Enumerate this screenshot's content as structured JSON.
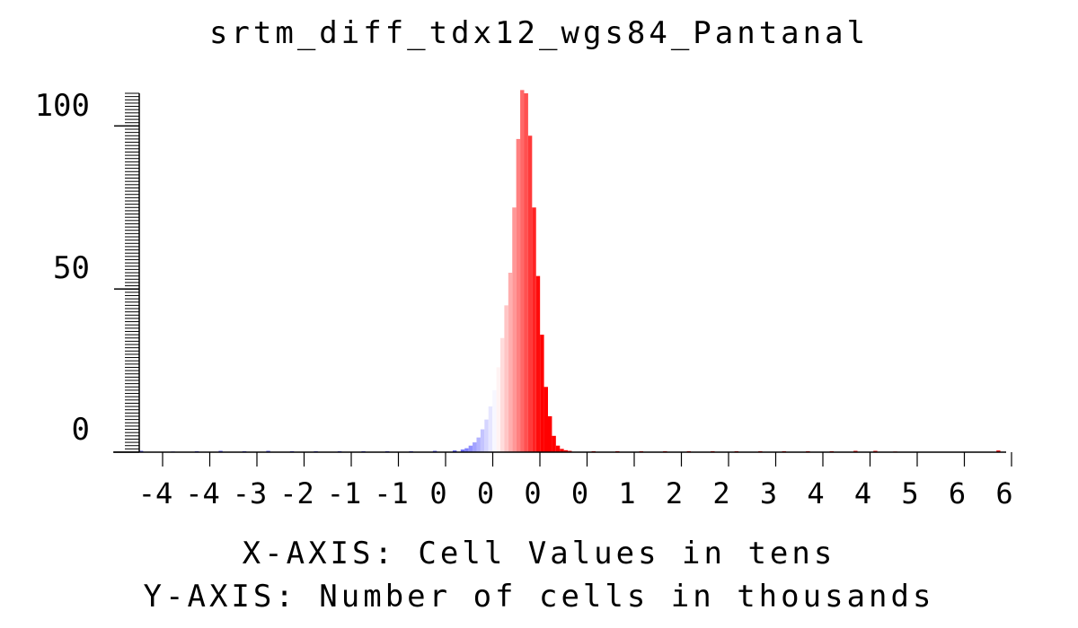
{
  "chart_data": {
    "type": "bar",
    "title": "srtm_diff_tdx12_wgs84_Pantanal",
    "xlabel": "X-AXIS: Cell Values in tens",
    "ylabel": "Y-AXIS: Number of cells in thousands",
    "xlim": [
      -4.5,
      6.4
    ],
    "ylim": [
      0,
      110
    ],
    "grid": false,
    "x_tick_labels": [
      "-4",
      "-4",
      "-3",
      "-2",
      "-1",
      "-1",
      "0",
      "0",
      "0",
      "0",
      "1",
      "2",
      "2",
      "3",
      "4",
      "4",
      "5",
      "6",
      "6"
    ],
    "y_tick_labels": [
      "100",
      "50",
      "0"
    ],
    "bin_width": 0.05,
    "bins": [
      {
        "x": -4.5,
        "value": 0.4
      },
      {
        "x": -4.1,
        "value": 0.2
      },
      {
        "x": -3.8,
        "value": 0.3
      },
      {
        "x": -3.5,
        "value": 0.4
      },
      {
        "x": -3.2,
        "value": 0.3
      },
      {
        "x": -2.9,
        "value": 0.4
      },
      {
        "x": -2.6,
        "value": 0.3
      },
      {
        "x": -2.3,
        "value": 0.3
      },
      {
        "x": -2.0,
        "value": 0.3
      },
      {
        "x": -1.7,
        "value": 0.3
      },
      {
        "x": -1.4,
        "value": 0.3
      },
      {
        "x": -1.1,
        "value": 0.3
      },
      {
        "x": -0.8,
        "value": 0.4
      },
      {
        "x": -0.55,
        "value": 0.5
      },
      {
        "x": -0.45,
        "value": 0.8
      },
      {
        "x": -0.4,
        "value": 1.2
      },
      {
        "x": -0.35,
        "value": 2.0
      },
      {
        "x": -0.3,
        "value": 3.0
      },
      {
        "x": -0.25,
        "value": 4.5
      },
      {
        "x": -0.2,
        "value": 7.0
      },
      {
        "x": -0.15,
        "value": 10.0
      },
      {
        "x": -0.1,
        "value": 14.0
      },
      {
        "x": -0.05,
        "value": 19.0
      },
      {
        "x": 0.0,
        "value": 26.0
      },
      {
        "x": 0.05,
        "value": 35.0
      },
      {
        "x": 0.1,
        "value": 45.0
      },
      {
        "x": 0.15,
        "value": 55.0
      },
      {
        "x": 0.2,
        "value": 75.0
      },
      {
        "x": 0.25,
        "value": 96.0
      },
      {
        "x": 0.3,
        "value": 111.0
      },
      {
        "x": 0.35,
        "value": 110.0
      },
      {
        "x": 0.4,
        "value": 97.0
      },
      {
        "x": 0.45,
        "value": 75.0
      },
      {
        "x": 0.5,
        "value": 54.0
      },
      {
        "x": 0.55,
        "value": 36.0
      },
      {
        "x": 0.6,
        "value": 20.0
      },
      {
        "x": 0.65,
        "value": 11.0
      },
      {
        "x": 0.7,
        "value": 5.0
      },
      {
        "x": 0.75,
        "value": 2.0
      },
      {
        "x": 0.8,
        "value": 1.0
      },
      {
        "x": 0.85,
        "value": 0.6
      },
      {
        "x": 0.9,
        "value": 0.4
      },
      {
        "x": 1.2,
        "value": 0.3
      },
      {
        "x": 1.5,
        "value": 0.3
      },
      {
        "x": 1.8,
        "value": 0.3
      },
      {
        "x": 2.1,
        "value": 0.3
      },
      {
        "x": 2.4,
        "value": 0.3
      },
      {
        "x": 2.7,
        "value": 0.3
      },
      {
        "x": 3.0,
        "value": 0.3
      },
      {
        "x": 3.3,
        "value": 0.3
      },
      {
        "x": 3.6,
        "value": 0.3
      },
      {
        "x": 3.9,
        "value": 0.3
      },
      {
        "x": 4.2,
        "value": 0.3
      },
      {
        "x": 4.5,
        "value": 0.4
      },
      {
        "x": 4.75,
        "value": 0.4
      },
      {
        "x": 5.0,
        "value": 0.2
      },
      {
        "x": 6.3,
        "value": 0.5
      }
    ],
    "colors": {
      "negative": "#5555ff",
      "neutral": "#ffffff",
      "positive": "#ff0000",
      "axis": "#000000"
    }
  }
}
